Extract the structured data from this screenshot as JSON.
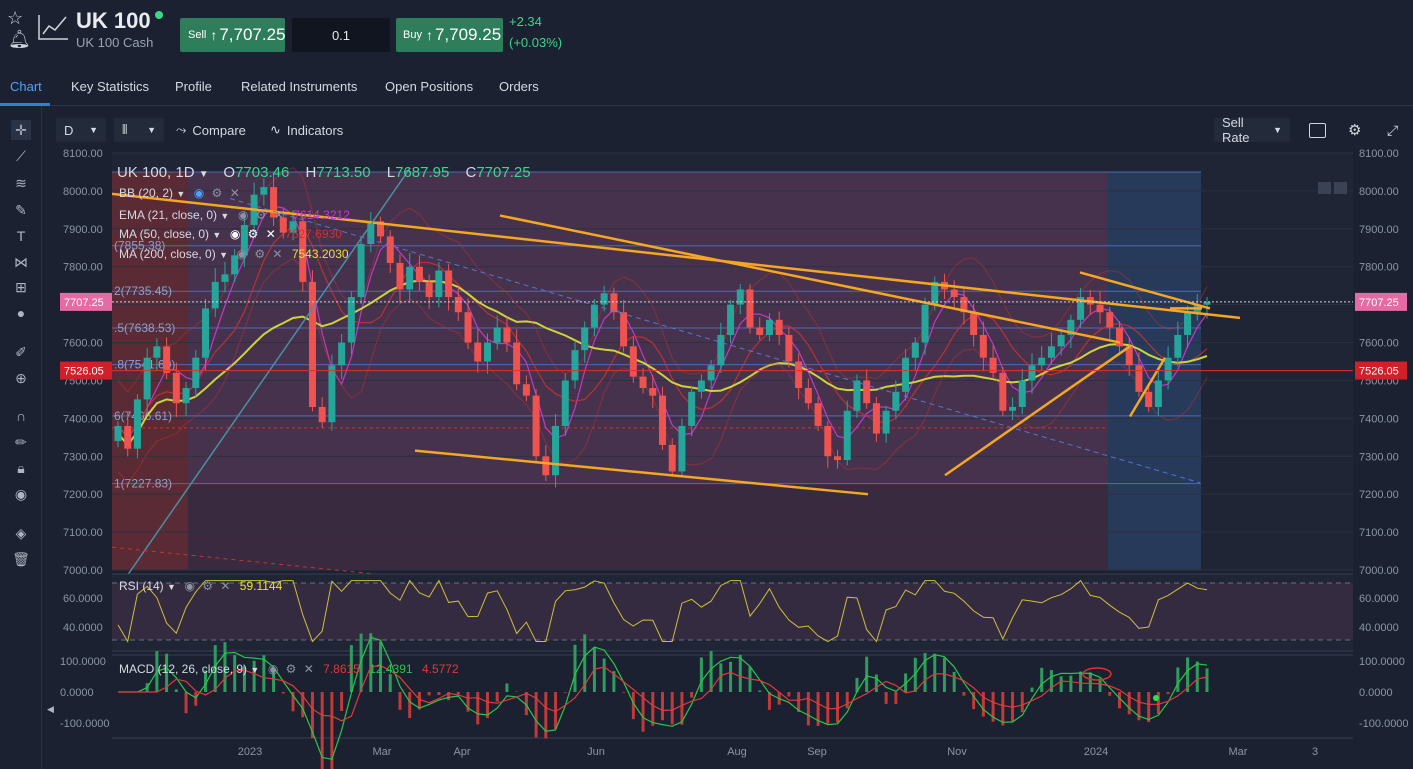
{
  "header": {
    "title": "UK 100",
    "subtitle": "UK 100 Cash",
    "sell_label": "Sell",
    "sell_price": "7,707.25",
    "quantity": "0.1",
    "buy_label": "Buy",
    "buy_price": "7,709.25",
    "change": "+2.34",
    "change_pct": "(+0.03%)"
  },
  "tabs": [
    "Chart",
    "Key Statistics",
    "Profile",
    "Related Instruments",
    "Open Positions",
    "Orders"
  ],
  "toolbar": {
    "interval": "D",
    "compare": "Compare",
    "indicators": "Indicators",
    "price_type": "Sell Rate"
  },
  "legend": {
    "symbol": "UK 100, 1D",
    "o_label": "O",
    "o": "7703.46",
    "h_label": "H",
    "h": "7713.50",
    "l_label": "L",
    "l": "7687.95",
    "c_label": "C",
    "c": "7707.25",
    "bb": "BB (20, 2)",
    "ema": "EMA (21, close, 0)",
    "ema_val": "7614.3212",
    "ma50": "MA (50, close, 0)",
    "ma50_val": "7627.6930",
    "ma200": "MA (200, close, 0)",
    "ma200_val": "7543.2030",
    "rsi": "RSI (14)",
    "rsi_val": "59.1144",
    "macd": "MACD (12, 26, close, 9)",
    "macd_v1": "7.8615",
    "macd_v2": "12.4391",
    "macd_v3": "4.5772"
  },
  "colors": {
    "up": "#26a69a",
    "down": "#ef5350",
    "trend": "#f5a623",
    "ma200": "#cdd43a",
    "ema": "#c238c9",
    "bb": "#d03030",
    "macd": "#29c64a",
    "signal": "#e03a3a",
    "accent": "#2f7de1"
  },
  "chart_data": {
    "type": "candlestick",
    "price_axis": {
      "ticks": [
        "8100.00",
        "8000.00",
        "7900.00",
        "7800.00",
        "7700.00",
        "7600.00",
        "7500.00",
        "7400.00",
        "7300.00",
        "7200.00",
        "7100.00",
        "7000.00"
      ],
      "min": 7000,
      "max": 8100
    },
    "current_price": "7707.25",
    "marked_price": "7526.05",
    "fib_labels": [
      "(7855.38)",
      "2(7735.45)",
      ".5(7638.53)",
      ".8(7541.60)",
      "6(7406.61)",
      "1(7227.83)"
    ],
    "fib_levels": [
      8050,
      7855.38,
      7735.45,
      7638.53,
      7541.6,
      7406.61,
      7227.83
    ],
    "x_labels": [
      "2023",
      "Mar",
      "Apr",
      "Jun",
      "Aug",
      "Sep",
      "Nov",
      "2024",
      "Mar",
      "3"
    ],
    "rsi_axis": [
      "60.0000",
      "40.0000"
    ],
    "macd_axis": [
      "100.0000",
      "0.0000",
      "-100.0000"
    ],
    "close_series": [
      7380,
      7320,
      7450,
      7560,
      7590,
      7520,
      7440,
      7480,
      7560,
      7690,
      7760,
      7780,
      7830,
      7910,
      7990,
      8010,
      7930,
      7890,
      7920,
      7760,
      7430,
      7390,
      7540,
      7600,
      7720,
      7860,
      7920,
      7880,
      7810,
      7740,
      7800,
      7760,
      7720,
      7790,
      7720,
      7680,
      7600,
      7550,
      7600,
      7640,
      7600,
      7490,
      7460,
      7300,
      7250,
      7380,
      7500,
      7580,
      7640,
      7700,
      7730,
      7680,
      7590,
      7510,
      7480,
      7460,
      7330,
      7260,
      7380,
      7470,
      7500,
      7540,
      7620,
      7700,
      7740,
      7640,
      7620,
      7660,
      7620,
      7550,
      7480,
      7440,
      7380,
      7300,
      7290,
      7420,
      7500,
      7440,
      7360,
      7420,
      7470,
      7560,
      7600,
      7700,
      7760,
      7740,
      7720,
      7680,
      7620,
      7560,
      7520,
      7420,
      7430,
      7500,
      7540,
      7560,
      7590,
      7620,
      7660,
      7720,
      7700,
      7680,
      7640,
      7590,
      7540,
      7470,
      7430,
      7500,
      7560,
      7620,
      7680,
      7700,
      7707
    ]
  }
}
